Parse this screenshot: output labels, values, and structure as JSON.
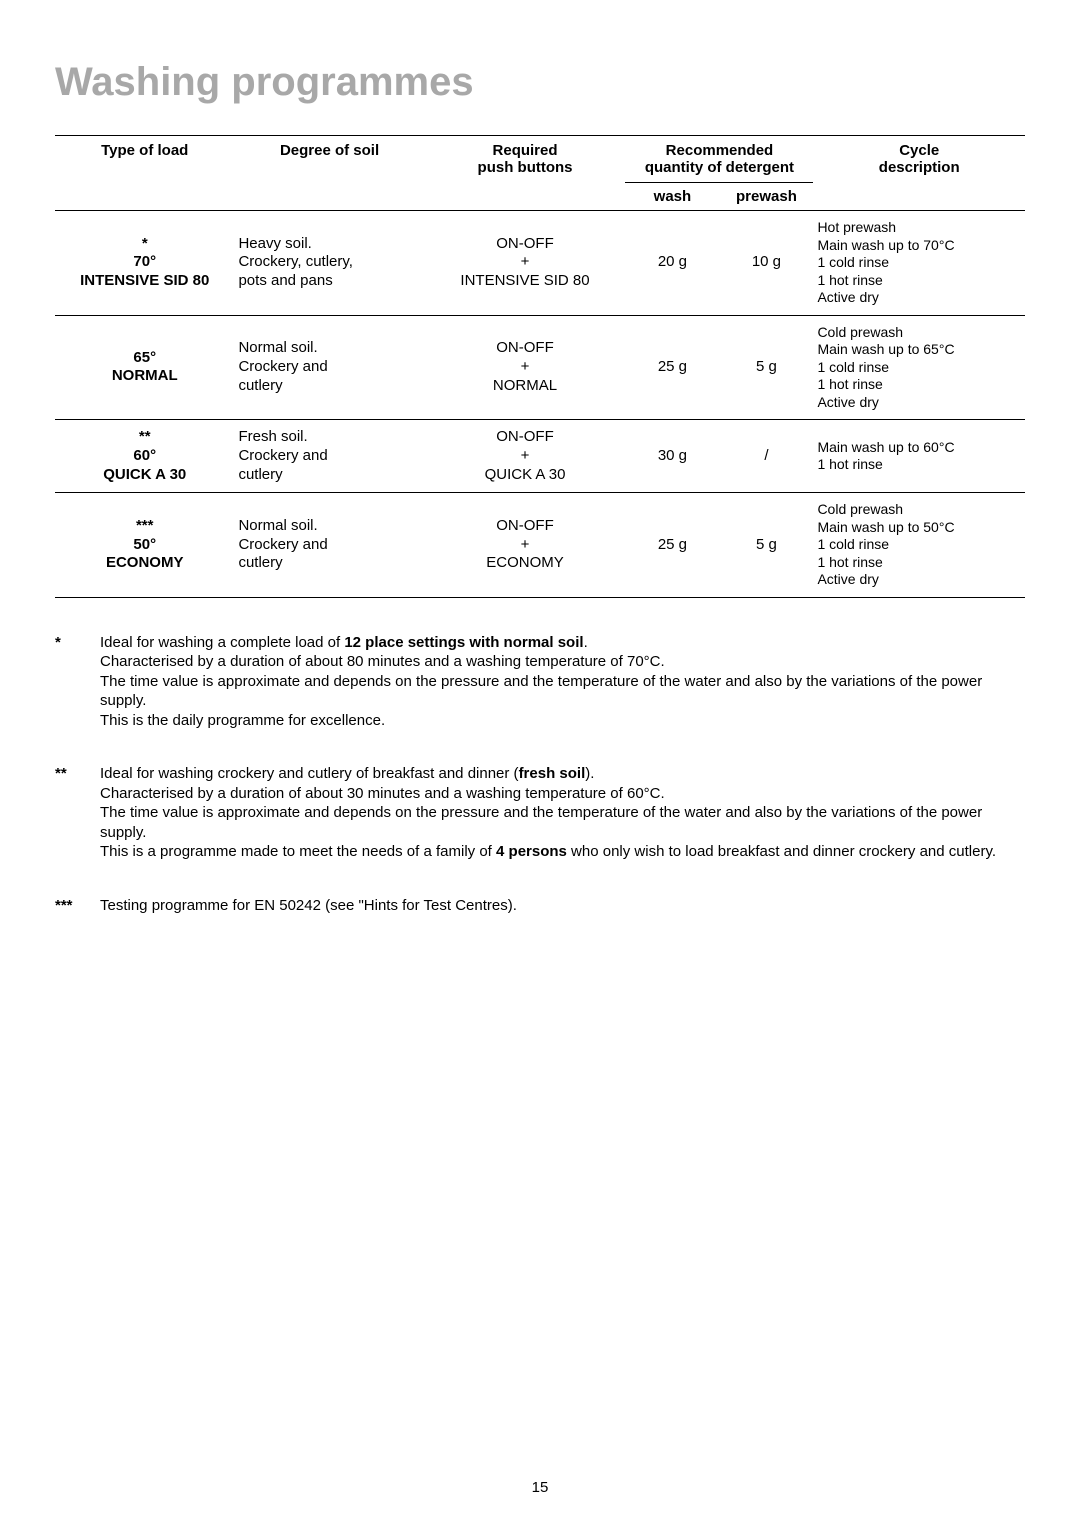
{
  "title": "Washing programmes",
  "table": {
    "headers": {
      "type_of_load": "Type of load",
      "degree_of_soil": "Degree of soil",
      "required_buttons_l1": "Required",
      "required_buttons_l2": "push buttons",
      "recommended_l1": "Recommended",
      "recommended_l2": "quantity of detergent",
      "cycle_l1": "Cycle",
      "cycle_l2": "description",
      "wash": "wash",
      "prewash": "prewash"
    },
    "rows": [
      {
        "load_star": "*",
        "load_temp": "70°",
        "load_name": "INTENSIVE SID 80",
        "soil_l1": "Heavy soil.",
        "soil_l2": "Crockery, cutlery,",
        "soil_l3": "pots and pans",
        "buttons_l1": "ON-OFF",
        "buttons_l2": "+",
        "buttons_l3": "INTENSIVE SID 80",
        "wash": "20 g",
        "prewash": "10 g",
        "cycle_l1": "Hot prewash",
        "cycle_l2": "Main wash up to 70°C",
        "cycle_l3": "1 cold rinse",
        "cycle_l4": "1 hot rinse",
        "cycle_l5": "Active dry"
      },
      {
        "load_star": "",
        "load_temp": "65°",
        "load_name": "NORMAL",
        "soil_l1": "Normal soil.",
        "soil_l2": "Crockery and",
        "soil_l3": "cutlery",
        "buttons_l1": "ON-OFF",
        "buttons_l2": "+",
        "buttons_l3": "NORMAL",
        "wash": "25 g",
        "prewash": "5 g",
        "cycle_l1": "Cold prewash",
        "cycle_l2": "Main wash up to 65°C",
        "cycle_l3": "1 cold rinse",
        "cycle_l4": "1 hot rinse",
        "cycle_l5": "Active dry"
      },
      {
        "load_star": "**",
        "load_temp": "60°",
        "load_name": "QUICK A 30",
        "soil_l1": "Fresh soil.",
        "soil_l2": "Crockery and",
        "soil_l3": "cutlery",
        "buttons_l1": "ON-OFF",
        "buttons_l2": "+",
        "buttons_l3": "QUICK A 30",
        "wash": "30 g",
        "prewash": "/",
        "cycle_l1": "",
        "cycle_l2": "Main wash up to 60°C",
        "cycle_l3": "",
        "cycle_l4": "1 hot rinse",
        "cycle_l5": ""
      },
      {
        "load_star": "***",
        "load_temp": "50°",
        "load_name": "ECONOMY",
        "soil_l1": "Normal soil.",
        "soil_l2": "Crockery and",
        "soil_l3": "cutlery",
        "buttons_l1": "ON-OFF",
        "buttons_l2": "+",
        "buttons_l3": "ECONOMY",
        "wash": "25 g",
        "prewash": "5 g",
        "cycle_l1": "Cold prewash",
        "cycle_l2": "Main wash up to 50°C",
        "cycle_l3": "1 cold rinse",
        "cycle_l4": "1 hot rinse",
        "cycle_l5": "Active dry"
      }
    ]
  },
  "notes": {
    "n1": {
      "mark": "*",
      "t1a": "Ideal for washing a complete load of ",
      "t1b": "12 place settings with normal soil",
      "t1c": ".",
      "t2": "Characterised by a duration of about 80 minutes and a washing temperature of 70°C.",
      "t3": "The time value is approximate and depends on the pressure and the temperature of the water and also by the variations of the power supply.",
      "t4": "This is the daily programme for excellence."
    },
    "n2": {
      "mark": "**",
      "t1a": "Ideal for washing crockery and cutlery of breakfast and dinner (",
      "t1b": "fresh soil",
      "t1c": ").",
      "t2": "Characterised by a duration of about 30 minutes and a washing temperature of 60°C.",
      "t3": "The time value is approximate and depends on the pressure and the temperature of the water and also by the variations of the power supply.",
      "t4a": "This is a programme made to meet the needs of a family of ",
      "t4b": "4 persons",
      "t4c": " who only wish to load breakfast and dinner crockery and cutlery."
    },
    "n3": {
      "mark": "***",
      "t1": "Testing programme for EN 50242 (see \"Hints for Test Centres)."
    }
  },
  "page_number": "15"
}
